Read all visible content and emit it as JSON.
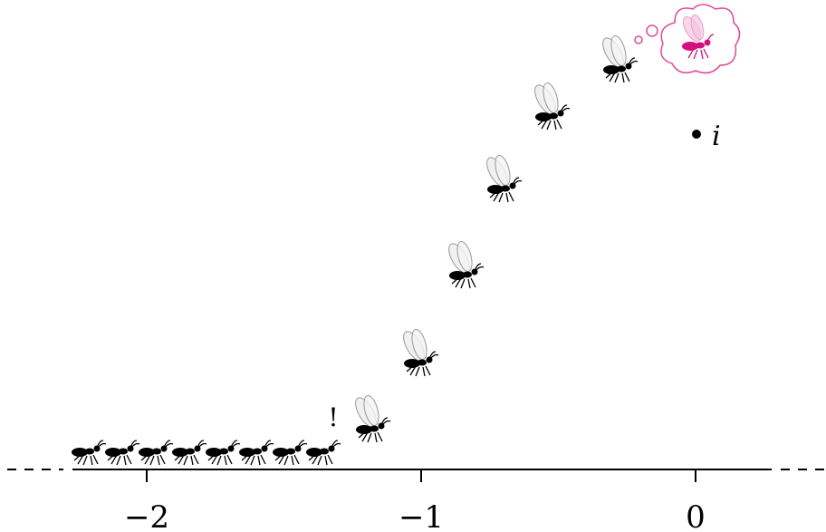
{
  "axis": {
    "tick_labels": [
      "−2",
      "−1",
      "0"
    ]
  },
  "point": {
    "label": "i"
  },
  "exclamation": "!"
}
